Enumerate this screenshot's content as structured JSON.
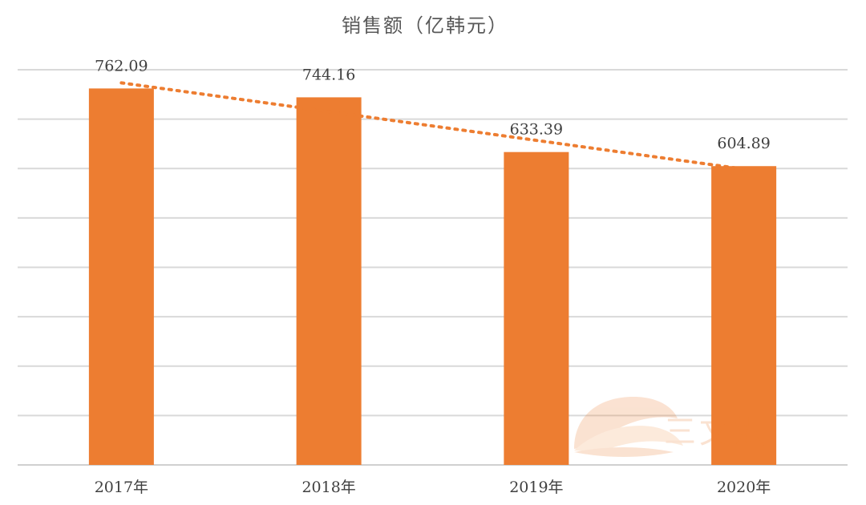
{
  "chart_data": {
    "type": "bar",
    "title": "销售额（亿韩元）",
    "categories": [
      "2017年",
      "2018年",
      "2019年",
      "2020年"
    ],
    "series": [
      {
        "values": [
          762.09,
          744.16,
          633.39,
          604.89
        ]
      }
    ],
    "data_labels": [
      "762.09",
      "744.16",
      "633.39",
      "604.89"
    ],
    "ylim": [
      0,
      800
    ],
    "y_grid_step": 100,
    "grid": true,
    "y_tick_labels_visible": false,
    "legend": "none",
    "trendline": {
      "type": "linear",
      "style": "dotted"
    },
    "colors": {
      "bar": "#ED7D31",
      "trendline": "#ED7D31",
      "grid": "#D9D9D9"
    }
  },
  "watermark": {
    "text": "三文娱",
    "color": "#ED7D31"
  }
}
